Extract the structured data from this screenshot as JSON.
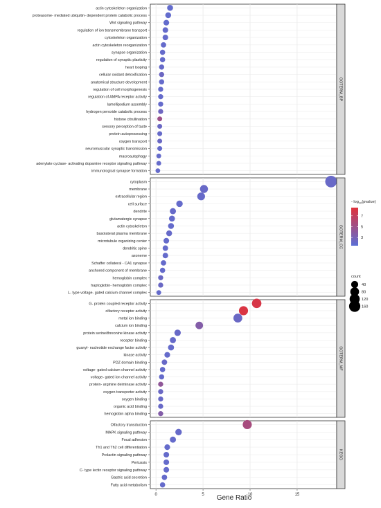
{
  "chart_data": {
    "type": "scatter",
    "xlabel": "Gene Ratio",
    "ylabel": "",
    "xlim": [
      -0.6,
      19.2
    ],
    "xticks": [
      0,
      5,
      10,
      15
    ],
    "grid": true,
    "legend_placement": "right",
    "color_legend": {
      "title_prefix": "- log",
      "title_sub": "10",
      "title_suffix": "(pvalue)",
      "ticks": [
        7,
        5,
        3
      ],
      "range": [
        1.5,
        8.5
      ],
      "low_color": "#5b6fd6",
      "high_color": "#e0323c"
    },
    "size_legend": {
      "title": "count",
      "values": [
        40,
        80,
        120,
        160
      ]
    },
    "panels": [
      {
        "name": "GOTERM_BP",
        "points": [
          {
            "term": "actin cytoskeleton organization",
            "x": 1.5,
            "count": 22,
            "pvalue": 1.9
          },
          {
            "term": "proteasome- mediated ubiquitin- dependent protein catabolic process",
            "x": 1.3,
            "count": 20,
            "pvalue": 1.9
          },
          {
            "term": "Wnt signaling pathway",
            "x": 1.1,
            "count": 18,
            "pvalue": 1.9
          },
          {
            "term": "regulation of ion transmembrane transport",
            "x": 1.0,
            "count": 17,
            "pvalue": 2.0
          },
          {
            "term": "cytoskeleton organization",
            "x": 1.0,
            "count": 17,
            "pvalue": 2.0
          },
          {
            "term": "actin cytoskeleton reorganization",
            "x": 0.8,
            "count": 14,
            "pvalue": 2.0
          },
          {
            "term": "synapse organization",
            "x": 0.7,
            "count": 13,
            "pvalue": 2.0
          },
          {
            "term": "regulation of synaptic plasticity",
            "x": 0.7,
            "count": 13,
            "pvalue": 2.0
          },
          {
            "term": "heart looping",
            "x": 0.6,
            "count": 12,
            "pvalue": 2.1
          },
          {
            "term": "cellular oxidant detoxification",
            "x": 0.6,
            "count": 12,
            "pvalue": 2.4
          },
          {
            "term": "anatomical structure development",
            "x": 0.6,
            "count": 12,
            "pvalue": 2.0
          },
          {
            "term": "regulation of cell morphogenesis",
            "x": 0.5,
            "count": 11,
            "pvalue": 2.0
          },
          {
            "term": "regulation of AMPA receptor activity",
            "x": 0.5,
            "count": 11,
            "pvalue": 2.0
          },
          {
            "term": "lamellipodium assembly",
            "x": 0.5,
            "count": 11,
            "pvalue": 2.0
          },
          {
            "term": "hydrogen peroxide catabolic process",
            "x": 0.5,
            "count": 11,
            "pvalue": 2.5
          },
          {
            "term": "histone citrullination",
            "x": 0.4,
            "count": 9,
            "pvalue": 5.0
          },
          {
            "term": "sensory perception of taste",
            "x": 0.4,
            "count": 9,
            "pvalue": 2.3
          },
          {
            "term": "protein autoprocessing",
            "x": 0.4,
            "count": 9,
            "pvalue": 2.1
          },
          {
            "term": "oxygen transport",
            "x": 0.4,
            "count": 9,
            "pvalue": 2.3
          },
          {
            "term": "neuromuscular synaptic transmission",
            "x": 0.4,
            "count": 9,
            "pvalue": 2.0
          },
          {
            "term": "macroautophagy",
            "x": 0.3,
            "count": 8,
            "pvalue": 2.0
          },
          {
            "term": "adenylate cyclase- activating dopamine receptor signaling pathway",
            "x": 0.3,
            "count": 8,
            "pvalue": 2.0
          },
          {
            "term": "immunological synapse formation",
            "x": 0.2,
            "count": 7,
            "pvalue": 2.0
          }
        ]
      },
      {
        "name": "GOTERM_CC",
        "points": [
          {
            "term": "cytoplasm",
            "x": 18.6,
            "count": 175,
            "pvalue": 2.2
          },
          {
            "term": "membrane",
            "x": 5.1,
            "count": 60,
            "pvalue": 2.2
          },
          {
            "term": "extracellular region",
            "x": 4.8,
            "count": 55,
            "pvalue": 2.1
          },
          {
            "term": "cell surface",
            "x": 2.5,
            "count": 30,
            "pvalue": 2.0
          },
          {
            "term": "dendrite",
            "x": 1.8,
            "count": 24,
            "pvalue": 2.1
          },
          {
            "term": "glutamatergic synapse",
            "x": 1.7,
            "count": 22,
            "pvalue": 2.0
          },
          {
            "term": "actin cytoskeleton",
            "x": 1.6,
            "count": 21,
            "pvalue": 2.0
          },
          {
            "term": "basolateral plasma membrane",
            "x": 1.4,
            "count": 20,
            "pvalue": 2.1
          },
          {
            "term": "microtubule organizing center",
            "x": 1.1,
            "count": 17,
            "pvalue": 2.0
          },
          {
            "term": "dendritic spine",
            "x": 1.0,
            "count": 16,
            "pvalue": 2.0
          },
          {
            "term": "axoneme",
            "x": 1.0,
            "count": 16,
            "pvalue": 2.0
          },
          {
            "term": "Schaffer collateral -  CA1 synapse",
            "x": 0.8,
            "count": 14,
            "pvalue": 2.0
          },
          {
            "term": "anchored component of membrane",
            "x": 0.7,
            "count": 13,
            "pvalue": 2.0
          },
          {
            "term": "hemoglobin complex",
            "x": 0.5,
            "count": 11,
            "pvalue": 2.3
          },
          {
            "term": "haptoglobin- hemoglobin complex",
            "x": 0.5,
            "count": 11,
            "pvalue": 2.3
          },
          {
            "term": "L- type voltage- gated calcium channel complex",
            "x": 0.3,
            "count": 8,
            "pvalue": 2.0
          }
        ]
      },
      {
        "name": "GOTERM_MF",
        "points": [
          {
            "term": "G- protein coupled receptor activity",
            "x": 10.7,
            "count": 100,
            "pvalue": 8.0
          },
          {
            "term": "olfactory receptor activity",
            "x": 9.3,
            "count": 88,
            "pvalue": 8.2
          },
          {
            "term": "metal ion binding",
            "x": 8.7,
            "count": 82,
            "pvalue": 2.3
          },
          {
            "term": "calcium ion binding",
            "x": 4.6,
            "count": 50,
            "pvalue": 3.6
          },
          {
            "term": "protein serine/threonine kinase activity",
            "x": 2.3,
            "count": 28,
            "pvalue": 2.2
          },
          {
            "term": "receptor binding",
            "x": 1.8,
            "count": 24,
            "pvalue": 2.1
          },
          {
            "term": "guanyl- nucleotide exchange factor activity",
            "x": 1.6,
            "count": 22,
            "pvalue": 2.0
          },
          {
            "term": "kinase activity",
            "x": 1.2,
            "count": 18,
            "pvalue": 2.0
          },
          {
            "term": "PDZ domain binding",
            "x": 0.9,
            "count": 15,
            "pvalue": 2.2
          },
          {
            "term": "voltage- gated calcium channel activity",
            "x": 0.7,
            "count": 13,
            "pvalue": 2.0
          },
          {
            "term": "voltage- gated ion channel activity",
            "x": 0.6,
            "count": 12,
            "pvalue": 2.0
          },
          {
            "term": "protein- arginine deiminase activity",
            "x": 0.5,
            "count": 11,
            "pvalue": 4.3
          },
          {
            "term": "oxygen transporter activity",
            "x": 0.5,
            "count": 11,
            "pvalue": 2.3
          },
          {
            "term": "oxygen binding",
            "x": 0.5,
            "count": 11,
            "pvalue": 2.2
          },
          {
            "term": "organic acid binding",
            "x": 0.5,
            "count": 11,
            "pvalue": 2.2
          },
          {
            "term": "hemoglobin alpha binding",
            "x": 0.5,
            "count": 11,
            "pvalue": 3.6
          }
        ]
      },
      {
        "name": "KEGG",
        "points": [
          {
            "term": "Olfactory transduction",
            "x": 9.7,
            "count": 88,
            "pvalue": 5.5
          },
          {
            "term": "MAPK signaling pathway",
            "x": 2.4,
            "count": 30,
            "pvalue": 2.1
          },
          {
            "term": "Focal adhesion",
            "x": 1.8,
            "count": 24,
            "pvalue": 2.0
          },
          {
            "term": "Th1 and Th2 cell differentiation",
            "x": 1.2,
            "count": 18,
            "pvalue": 2.0
          },
          {
            "term": "Prolactin signaling pathway",
            "x": 1.1,
            "count": 17,
            "pvalue": 2.0
          },
          {
            "term": "Pertussis",
            "x": 1.1,
            "count": 17,
            "pvalue": 2.0
          },
          {
            "term": "C- type lectin receptor signaling pathway",
            "x": 1.1,
            "count": 17,
            "pvalue": 2.0
          },
          {
            "term": "Gastric acid secretion",
            "x": 0.9,
            "count": 15,
            "pvalue": 2.0
          },
          {
            "term": "Fatty acid metabolism",
            "x": 0.7,
            "count": 13,
            "pvalue": 2.0
          }
        ]
      }
    ]
  }
}
